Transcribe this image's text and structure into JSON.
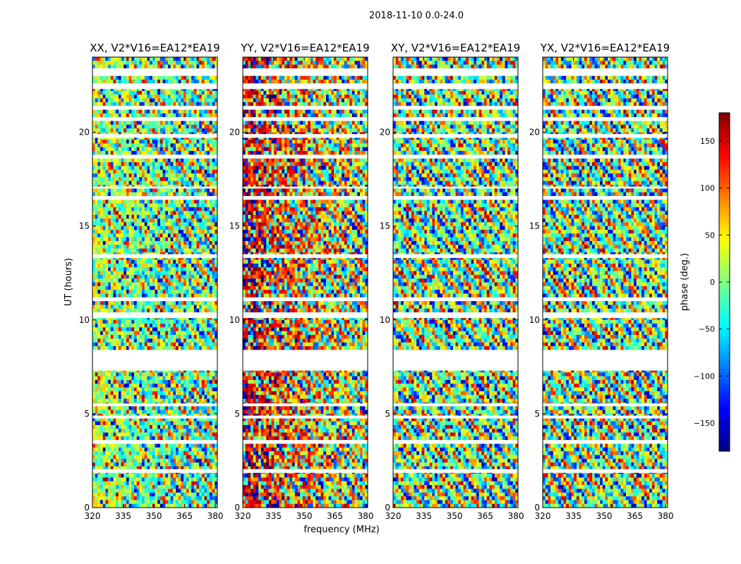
{
  "figure": {
    "suptitle": "2018-11-10 0.0-24.0",
    "xlabel": "frequency (MHz)",
    "ylabel": "UT (hours)"
  },
  "chart_data": {
    "type": "heatmap",
    "title": "2018-11-10 0.0-24.0",
    "xlabel": "frequency (MHz)",
    "ylabel": "UT (hours)",
    "xlim": [
      320,
      381
    ],
    "ylim": [
      0,
      24
    ],
    "xticks": [
      320,
      335,
      350,
      365,
      380
    ],
    "yticks": [
      0,
      5,
      10,
      15,
      20
    ],
    "panels": [
      {
        "title": "XX, V2*V16=EA12*EA19",
        "coherent_phase_deg": 30,
        "coherence": 0.55
      },
      {
        "title": "YY, V2*V16=EA12*EA19",
        "coherent_phase_deg": 160,
        "coherence": 0.6
      },
      {
        "title": "XY, V2*V16=EA12*EA19",
        "coherent_phase_deg": 0,
        "coherence": 0.0
      },
      {
        "title": "YX, V2*V16=EA12*EA19",
        "coherent_phase_deg": 0,
        "coherence": 0.0
      }
    ],
    "data_gaps_hours": [
      [
        23.0,
        23.4
      ],
      [
        22.3,
        22.6
      ],
      [
        21.2,
        21.4
      ],
      [
        20.6,
        20.8
      ],
      [
        19.7,
        19.9
      ],
      [
        18.6,
        18.8
      ],
      [
        17.0,
        17.1
      ],
      [
        16.4,
        16.6
      ],
      [
        13.3,
        13.5
      ],
      [
        11.0,
        11.2
      ],
      [
        10.1,
        10.4
      ],
      [
        8.4,
        7.3
      ],
      [
        5.55,
        5.4
      ],
      [
        4.9,
        4.75
      ],
      [
        3.4,
        3.6
      ],
      [
        1.85,
        2.05
      ]
    ],
    "colorbar": {
      "label": "phase (deg.)",
      "range": [
        -180,
        180
      ],
      "ticks": [
        150,
        100,
        50,
        0,
        -50,
        -100,
        -150
      ],
      "tick_labels": [
        "150",
        "100",
        "50",
        "0",
        "−50",
        "−100",
        "−150"
      ],
      "colormap": "jet"
    }
  }
}
